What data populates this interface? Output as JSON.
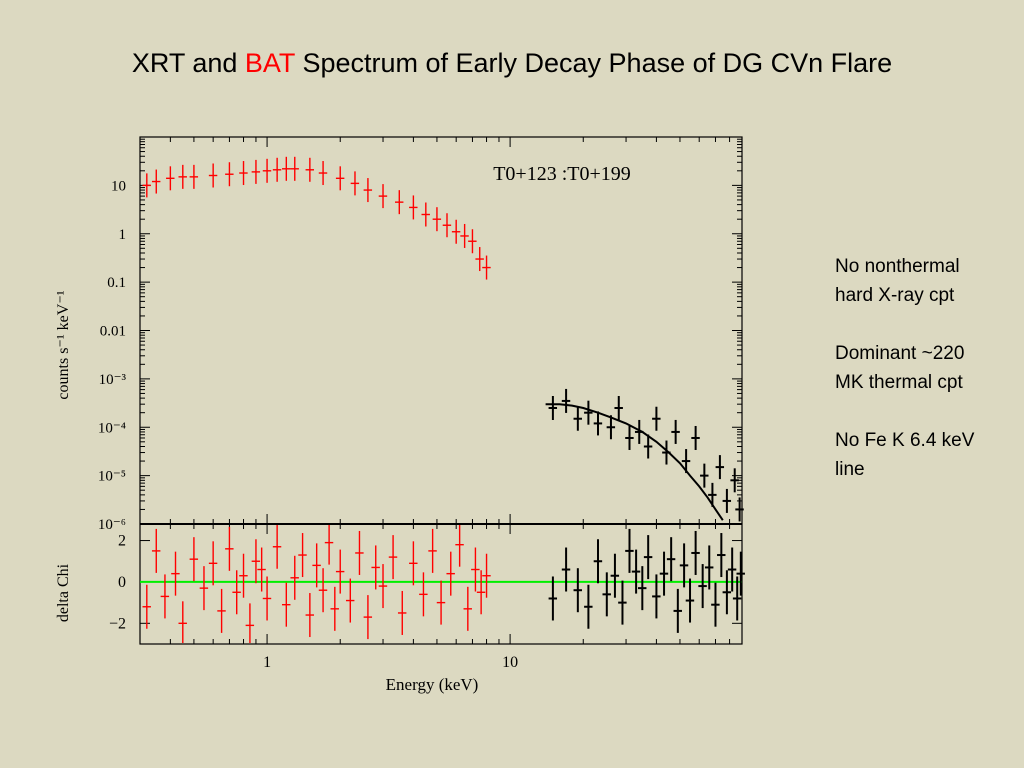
{
  "slide": {
    "title_pre": "XRT and ",
    "title_accent": "BAT",
    "title_post": " Spectrum of Early Decay Phase of DG CVn Flare",
    "accent_color": "#ff0000"
  },
  "notes": [
    {
      "line1": "No nonthermal",
      "line2": "hard X-ray cpt"
    },
    {
      "line1": "Dominant ~220",
      "line2": "MK thermal cpt"
    },
    {
      "line1": "No Fe K 6.4 keV",
      "line2": "line"
    }
  ],
  "chart_data": {
    "type": "scatter",
    "annotation": "T0+123 :T0+199",
    "xlabel": "Energy (keV)",
    "xscale": "log",
    "xlim": [
      0.3,
      90
    ],
    "xticks": [
      {
        "value": 1,
        "label": "1"
      },
      {
        "value": 10,
        "label": "10"
      }
    ],
    "top_panel": {
      "ylabel": "counts s⁻¹ keV⁻¹",
      "yscale": "log",
      "ylim": [
        1e-06,
        100
      ],
      "yticks": [
        {
          "value": 10,
          "label": "10"
        },
        {
          "value": 1,
          "label": "1"
        },
        {
          "value": 0.1,
          "label": "0.1"
        },
        {
          "value": 0.01,
          "label": "0.01"
        },
        {
          "value": 0.001,
          "label": "10⁻³"
        },
        {
          "value": 0.0001,
          "label": "10⁻⁴"
        },
        {
          "value": 1e-05,
          "label": "10⁻⁵"
        },
        {
          "value": 1e-06,
          "label": "10⁻⁶"
        }
      ]
    },
    "bottom_panel": {
      "ylabel": "delta Chi",
      "ylim": [
        -3,
        2.8
      ],
      "yticks": [
        {
          "value": 2,
          "label": "2"
        },
        {
          "value": 0,
          "label": "0"
        },
        {
          "value": -2,
          "label": "−2"
        }
      ],
      "zero_line_color": "#00ee00"
    },
    "series": [
      {
        "color": "#ff0000",
        "spectrum": [
          [
            0.32,
            10
          ],
          [
            0.35,
            12
          ],
          [
            0.4,
            14
          ],
          [
            0.45,
            15
          ],
          [
            0.5,
            15
          ],
          [
            0.6,
            16
          ],
          [
            0.7,
            17
          ],
          [
            0.8,
            18
          ],
          [
            0.9,
            19
          ],
          [
            1.0,
            20
          ],
          [
            1.1,
            21
          ],
          [
            1.2,
            22
          ],
          [
            1.3,
            22
          ],
          [
            1.5,
            21
          ],
          [
            1.7,
            18
          ],
          [
            2.0,
            14
          ],
          [
            2.3,
            11
          ],
          [
            2.6,
            8
          ],
          [
            3.0,
            6
          ],
          [
            3.5,
            4.5
          ],
          [
            4.0,
            3.5
          ],
          [
            4.5,
            2.5
          ],
          [
            5.0,
            2.0
          ],
          [
            5.5,
            1.5
          ],
          [
            6.0,
            1.1
          ],
          [
            6.5,
            0.9
          ],
          [
            7.0,
            0.7
          ],
          [
            7.5,
            0.3
          ],
          [
            8.0,
            0.2
          ]
        ],
        "residuals": [
          [
            0.32,
            -1.2
          ],
          [
            0.35,
            1.5
          ],
          [
            0.38,
            -0.7
          ],
          [
            0.42,
            0.4
          ],
          [
            0.45,
            -2.0
          ],
          [
            0.5,
            1.1
          ],
          [
            0.55,
            -0.3
          ],
          [
            0.6,
            0.9
          ],
          [
            0.65,
            -1.4
          ],
          [
            0.7,
            1.6
          ],
          [
            0.75,
            -0.5
          ],
          [
            0.8,
            0.3
          ],
          [
            0.85,
            -2.1
          ],
          [
            0.9,
            1.0
          ],
          [
            0.95,
            0.6
          ],
          [
            1.0,
            -0.8
          ],
          [
            1.1,
            1.7
          ],
          [
            1.2,
            -1.1
          ],
          [
            1.3,
            0.2
          ],
          [
            1.4,
            1.3
          ],
          [
            1.5,
            -1.6
          ],
          [
            1.6,
            0.8
          ],
          [
            1.7,
            -0.4
          ],
          [
            1.8,
            1.9
          ],
          [
            1.9,
            -1.3
          ],
          [
            2.0,
            0.5
          ],
          [
            2.2,
            -0.9
          ],
          [
            2.4,
            1.4
          ],
          [
            2.6,
            -1.7
          ],
          [
            2.8,
            0.7
          ],
          [
            3.0,
            -0.2
          ],
          [
            3.3,
            1.2
          ],
          [
            3.6,
            -1.5
          ],
          [
            4.0,
            0.9
          ],
          [
            4.4,
            -0.6
          ],
          [
            4.8,
            1.5
          ],
          [
            5.2,
            -1.0
          ],
          [
            5.7,
            0.4
          ],
          [
            6.2,
            1.8
          ],
          [
            6.7,
            -1.3
          ],
          [
            7.2,
            0.6
          ],
          [
            7.6,
            -0.5
          ],
          [
            8.0,
            0.3
          ]
        ]
      },
      {
        "color": "#000000",
        "spectrum": [
          [
            15,
            0.00025
          ],
          [
            17,
            0.00035
          ],
          [
            19,
            0.00015
          ],
          [
            21,
            0.0002
          ],
          [
            23,
            0.00012
          ],
          [
            26,
            0.0001
          ],
          [
            28,
            0.00025
          ],
          [
            31,
            6e-05
          ],
          [
            34,
            8e-05
          ],
          [
            37,
            4e-05
          ],
          [
            40,
            0.00015
          ],
          [
            44,
            3e-05
          ],
          [
            48,
            8e-05
          ],
          [
            53,
            2e-05
          ],
          [
            58,
            6e-05
          ],
          [
            63,
            1e-05
          ],
          [
            68,
            4e-06
          ],
          [
            73,
            1.5e-05
          ],
          [
            78,
            3e-06
          ],
          [
            84,
            8e-06
          ],
          [
            88,
            2e-06
          ]
        ],
        "model": [
          [
            14,
            0.0003
          ],
          [
            16,
            0.0003
          ],
          [
            18,
            0.00028
          ],
          [
            20,
            0.00025
          ],
          [
            23,
            0.0002
          ],
          [
            26,
            0.00016
          ],
          [
            30,
            0.00012
          ],
          [
            35,
            8e-05
          ],
          [
            40,
            5e-05
          ],
          [
            45,
            3e-05
          ],
          [
            50,
            1.8e-05
          ],
          [
            55,
            1e-05
          ],
          [
            60,
            6e-06
          ],
          [
            65,
            3.5e-06
          ],
          [
            70,
            2e-06
          ],
          [
            75,
            1.2e-06
          ]
        ],
        "residuals": [
          [
            15,
            -0.8
          ],
          [
            17,
            0.6
          ],
          [
            19,
            -0.4
          ],
          [
            21,
            -1.2
          ],
          [
            23,
            1.0
          ],
          [
            25,
            -0.6
          ],
          [
            27,
            0.3
          ],
          [
            29,
            -1.0
          ],
          [
            31,
            1.5
          ],
          [
            33,
            0.5
          ],
          [
            35,
            -0.3
          ],
          [
            37,
            1.2
          ],
          [
            40,
            -0.7
          ],
          [
            43,
            0.4
          ],
          [
            46,
            1.1
          ],
          [
            49,
            -1.4
          ],
          [
            52,
            0.8
          ],
          [
            55,
            -0.9
          ],
          [
            58,
            1.4
          ],
          [
            62,
            -0.2
          ],
          [
            66,
            0.7
          ],
          [
            70,
            -1.1
          ],
          [
            74,
            1.3
          ],
          [
            78,
            -0.5
          ],
          [
            82,
            0.6
          ],
          [
            86,
            -0.8
          ],
          [
            89,
            0.4
          ]
        ]
      }
    ]
  }
}
